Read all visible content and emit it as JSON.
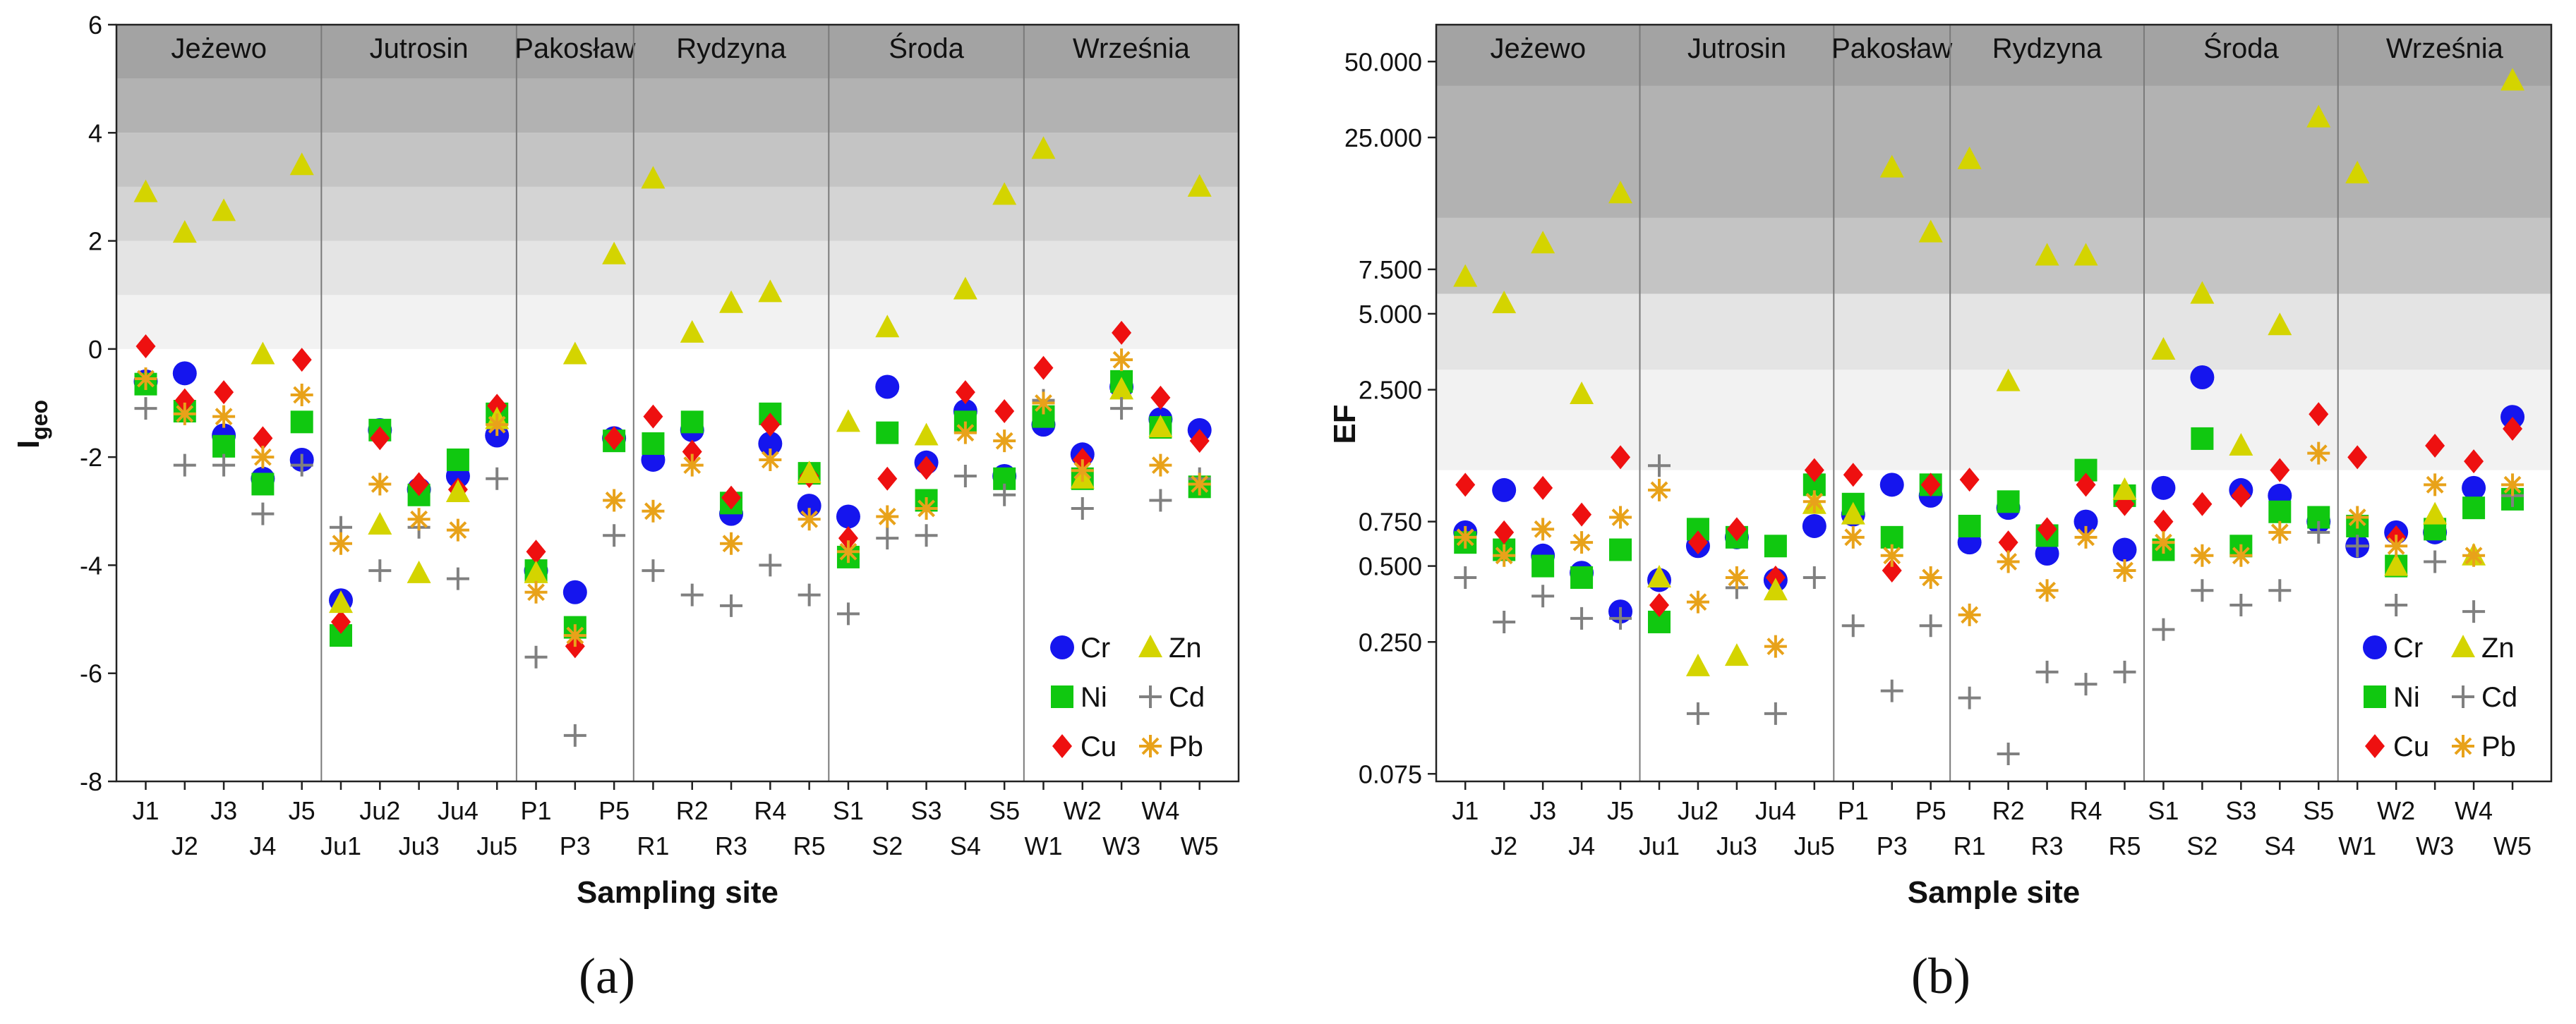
{
  "figure": {
    "panel_a_label": "(a)",
    "panel_b_label": "(b)"
  },
  "colors": {
    "Cr": "#1515ee",
    "Ni": "#10c810",
    "Cu": "#ee1010",
    "Zn": "#d4d400",
    "Cd": "#808080",
    "Pb": "#e8a21a",
    "band_1": "#f2f2f2",
    "band_2": "#e4e4e4",
    "band_3": "#d4d4d4",
    "band_4": "#c4c4c4",
    "band_5": "#b2b2b2",
    "band_6": "#a3a3a3",
    "separator": "#7a7a7a"
  },
  "chart_data": [
    {
      "type": "scatter",
      "panel": "(a)",
      "xlabel": "Sampling site",
      "ylabel": "I",
      "ylabel_sub": "geo",
      "ylim": [
        -8,
        6
      ],
      "yticks": [
        -8,
        -6,
        -4,
        -2,
        0,
        2,
        4,
        6
      ],
      "grid": false,
      "legend_position": "bottom-right",
      "categories": [
        "J1",
        "J2",
        "J3",
        "J4",
        "J5",
        "Ju1",
        "Ju2",
        "Ju3",
        "Ju4",
        "Ju5",
        "P1",
        "P3",
        "P5",
        "R1",
        "R2",
        "R3",
        "R4",
        "R5",
        "S1",
        "S2",
        "S3",
        "S4",
        "S5",
        "W1",
        "W2",
        "W3",
        "W4",
        "W5"
      ],
      "groups": [
        {
          "name": "Jeżewo",
          "start": 0,
          "end": 4
        },
        {
          "name": "Jutrosin",
          "start": 5,
          "end": 9
        },
        {
          "name": "Pakosław",
          "start": 10,
          "end": 12
        },
        {
          "name": "Rydzyna",
          "start": 13,
          "end": 17
        },
        {
          "name": "Środa",
          "start": 18,
          "end": 22
        },
        {
          "name": "Września",
          "start": 23,
          "end": 27
        }
      ],
      "bands": [
        {
          "from": 0,
          "to": 1,
          "color": "band_1"
        },
        {
          "from": 1,
          "to": 2,
          "color": "band_2"
        },
        {
          "from": 2,
          "to": 3,
          "color": "band_3"
        },
        {
          "from": 3,
          "to": 4,
          "color": "band_4"
        },
        {
          "from": 4,
          "to": 5,
          "color": "band_5"
        },
        {
          "from": 5,
          "to": 6,
          "color": "band_6"
        }
      ],
      "series": [
        {
          "name": "Cr",
          "marker": "circle",
          "values": [
            -0.6,
            -0.45,
            -1.6,
            -2.4,
            -2.05,
            -4.65,
            -1.5,
            -2.6,
            -2.35,
            -1.6,
            -4.1,
            -4.5,
            -1.65,
            -2.05,
            -1.5,
            -3.05,
            -1.75,
            -2.9,
            -3.1,
            -0.7,
            -2.1,
            -1.15,
            -2.35,
            -1.4,
            -1.95,
            -0.7,
            -1.3,
            -1.5
          ]
        },
        {
          "name": "Ni",
          "marker": "square",
          "values": [
            -0.65,
            -1.15,
            -1.8,
            -2.5,
            -1.35,
            -5.3,
            -1.5,
            -2.7,
            -2.05,
            -1.2,
            -4.1,
            -5.15,
            -1.7,
            -1.75,
            -1.35,
            -2.85,
            -1.2,
            -2.3,
            -3.85,
            -1.55,
            -2.8,
            -1.35,
            -2.4,
            -1.25,
            -2.4,
            -0.6,
            -1.45,
            -2.55
          ]
        },
        {
          "name": "Cu",
          "marker": "diamond",
          "values": [
            0.05,
            -0.95,
            -0.8,
            -1.65,
            -0.2,
            -5.05,
            -1.65,
            -2.5,
            -2.6,
            -1.05,
            -3.75,
            -5.5,
            -1.65,
            -1.25,
            -1.9,
            -2.75,
            -1.4,
            -2.35,
            -3.5,
            -2.4,
            -2.2,
            -0.8,
            -1.15,
            -0.35,
            -2.05,
            0.3,
            -0.9,
            -1.7
          ]
        },
        {
          "name": "Zn",
          "marker": "triangle",
          "values": [
            2.9,
            2.15,
            2.55,
            -0.1,
            3.4,
            -4.7,
            -3.25,
            -4.15,
            -2.65,
            -1.3,
            -4.15,
            -0.1,
            1.75,
            3.15,
            0.3,
            0.85,
            1.05,
            -2.3,
            -1.35,
            0.4,
            -1.6,
            1.1,
            2.85,
            3.7,
            -2.4,
            -0.75,
            -1.45,
            3.0
          ]
        },
        {
          "name": "Cd",
          "marker": "plus",
          "values": [
            -1.1,
            -2.15,
            -2.15,
            -3.05,
            -2.15,
            -3.3,
            -4.1,
            -3.3,
            -4.25,
            -2.4,
            -5.7,
            -7.15,
            -3.45,
            -4.1,
            -4.55,
            -4.75,
            -4.0,
            -4.55,
            -4.9,
            -3.5,
            -3.45,
            -2.35,
            -2.7,
            -0.95,
            -2.95,
            -1.1,
            -2.8,
            -2.4
          ]
        },
        {
          "name": "Pb",
          "marker": "asterisk",
          "values": [
            -0.55,
            -1.2,
            -1.25,
            -2.0,
            -0.85,
            -3.6,
            -2.5,
            -3.15,
            -3.35,
            -1.4,
            -4.5,
            -5.3,
            -2.8,
            -3.0,
            -2.15,
            -3.6,
            -2.05,
            -3.15,
            -3.75,
            -3.1,
            -2.95,
            -1.55,
            -1.7,
            -1.0,
            -2.25,
            -0.2,
            -2.15,
            -2.5
          ]
        }
      ]
    },
    {
      "type": "scatter",
      "panel": "(b)",
      "xlabel": "Sample site",
      "ylabel": "EF",
      "yscale": "log",
      "ylim": [
        0.07,
        70
      ],
      "yticks": [
        0.075,
        0.25,
        0.5,
        0.75,
        2.5,
        5,
        7.5,
        25,
        50
      ],
      "ytick_labels": [
        "0.075",
        "0.250",
        "0.500",
        "0.750",
        "2.500",
        "5.000",
        "7.500",
        "25.000",
        "50.000"
      ],
      "grid": false,
      "legend_position": "bottom-right",
      "categories": [
        "J1",
        "J2",
        "J3",
        "J4",
        "J5",
        "Ju1",
        "Ju2",
        "Ju3",
        "Ju4",
        "Ju5",
        "P1",
        "P3",
        "P5",
        "R1",
        "R2",
        "R3",
        "R4",
        "R5",
        "S1",
        "S2",
        "S3",
        "S4",
        "S5",
        "W1",
        "W2",
        "W3",
        "W4",
        "W5"
      ],
      "groups": [
        {
          "name": "Jeżewo",
          "start": 0,
          "end": 4
        },
        {
          "name": "Jutrosin",
          "start": 5,
          "end": 9
        },
        {
          "name": "Pakosław",
          "start": 10,
          "end": 12
        },
        {
          "name": "Rydzyna",
          "start": 13,
          "end": 17
        },
        {
          "name": "Środa",
          "start": 18,
          "end": 22
        },
        {
          "name": "Września",
          "start": 23,
          "end": 27
        }
      ],
      "bands": [
        {
          "from": 1.2,
          "to": 3.0,
          "color": "band_1"
        },
        {
          "from": 3.0,
          "to": 6.0,
          "color": "band_2"
        },
        {
          "from": 6.0,
          "to": 12.0,
          "color": "band_4"
        },
        {
          "from": 12.0,
          "to": 40.0,
          "color": "band_5"
        },
        {
          "from": 40.0,
          "to": 70.0,
          "color": "band_6"
        }
      ],
      "series": [
        {
          "name": "Cr",
          "marker": "circle",
          "values": [
            0.68,
            1.0,
            0.55,
            0.47,
            0.33,
            0.44,
            0.6,
            0.65,
            0.44,
            0.72,
            0.8,
            1.05,
            0.95,
            0.62,
            0.85,
            0.56,
            0.75,
            0.58,
            1.02,
            2.8,
            1.0,
            0.95,
            0.75,
            0.6,
            0.68,
            0.68,
            1.02,
            1.95
          ]
        },
        {
          "name": "Ni",
          "marker": "square",
          "values": [
            0.62,
            0.58,
            0.5,
            0.45,
            0.58,
            0.3,
            0.7,
            0.65,
            0.6,
            1.05,
            0.88,
            0.65,
            1.05,
            0.72,
            0.9,
            0.66,
            1.2,
            0.95,
            0.58,
            1.6,
            0.6,
            0.82,
            0.78,
            0.72,
            0.5,
            0.7,
            0.85,
            0.92
          ]
        },
        {
          "name": "Cu",
          "marker": "diamond",
          "values": [
            1.05,
            0.68,
            1.02,
            0.8,
            1.35,
            0.35,
            0.62,
            0.7,
            0.45,
            1.2,
            1.15,
            0.48,
            1.05,
            1.1,
            0.62,
            0.7,
            1.05,
            0.88,
            0.75,
            0.88,
            0.95,
            1.2,
            2.0,
            1.35,
            0.65,
            1.5,
            1.3,
            1.75
          ]
        },
        {
          "name": "Zn",
          "marker": "triangle",
          "values": [
            7.0,
            5.5,
            9.5,
            2.4,
            15.0,
            0.45,
            0.2,
            0.22,
            0.4,
            0.88,
            0.8,
            19.0,
            10.5,
            20.5,
            2.7,
            8.5,
            8.5,
            1.0,
            3.6,
            6.0,
            1.5,
            4.5,
            30.0,
            18.0,
            0.5,
            0.8,
            0.55,
            42.0
          ]
        },
        {
          "name": "Cd",
          "marker": "plus",
          "values": [
            0.45,
            0.3,
            0.38,
            0.31,
            0.31,
            1.25,
            0.13,
            0.41,
            0.13,
            0.45,
            0.29,
            0.16,
            0.29,
            0.15,
            0.09,
            0.19,
            0.17,
            0.19,
            0.28,
            0.4,
            0.35,
            0.4,
            0.68,
            0.6,
            0.35,
            0.52,
            0.33,
            0.95
          ]
        },
        {
          "name": "Pb",
          "marker": "asterisk",
          "values": [
            0.65,
            0.55,
            0.7,
            0.62,
            0.78,
            1.0,
            0.36,
            0.45,
            0.24,
            0.9,
            0.65,
            0.55,
            0.45,
            0.32,
            0.52,
            0.4,
            0.65,
            0.48,
            0.62,
            0.55,
            0.55,
            0.68,
            1.4,
            0.78,
            0.6,
            1.05,
            0.55,
            1.05
          ]
        }
      ]
    }
  ]
}
